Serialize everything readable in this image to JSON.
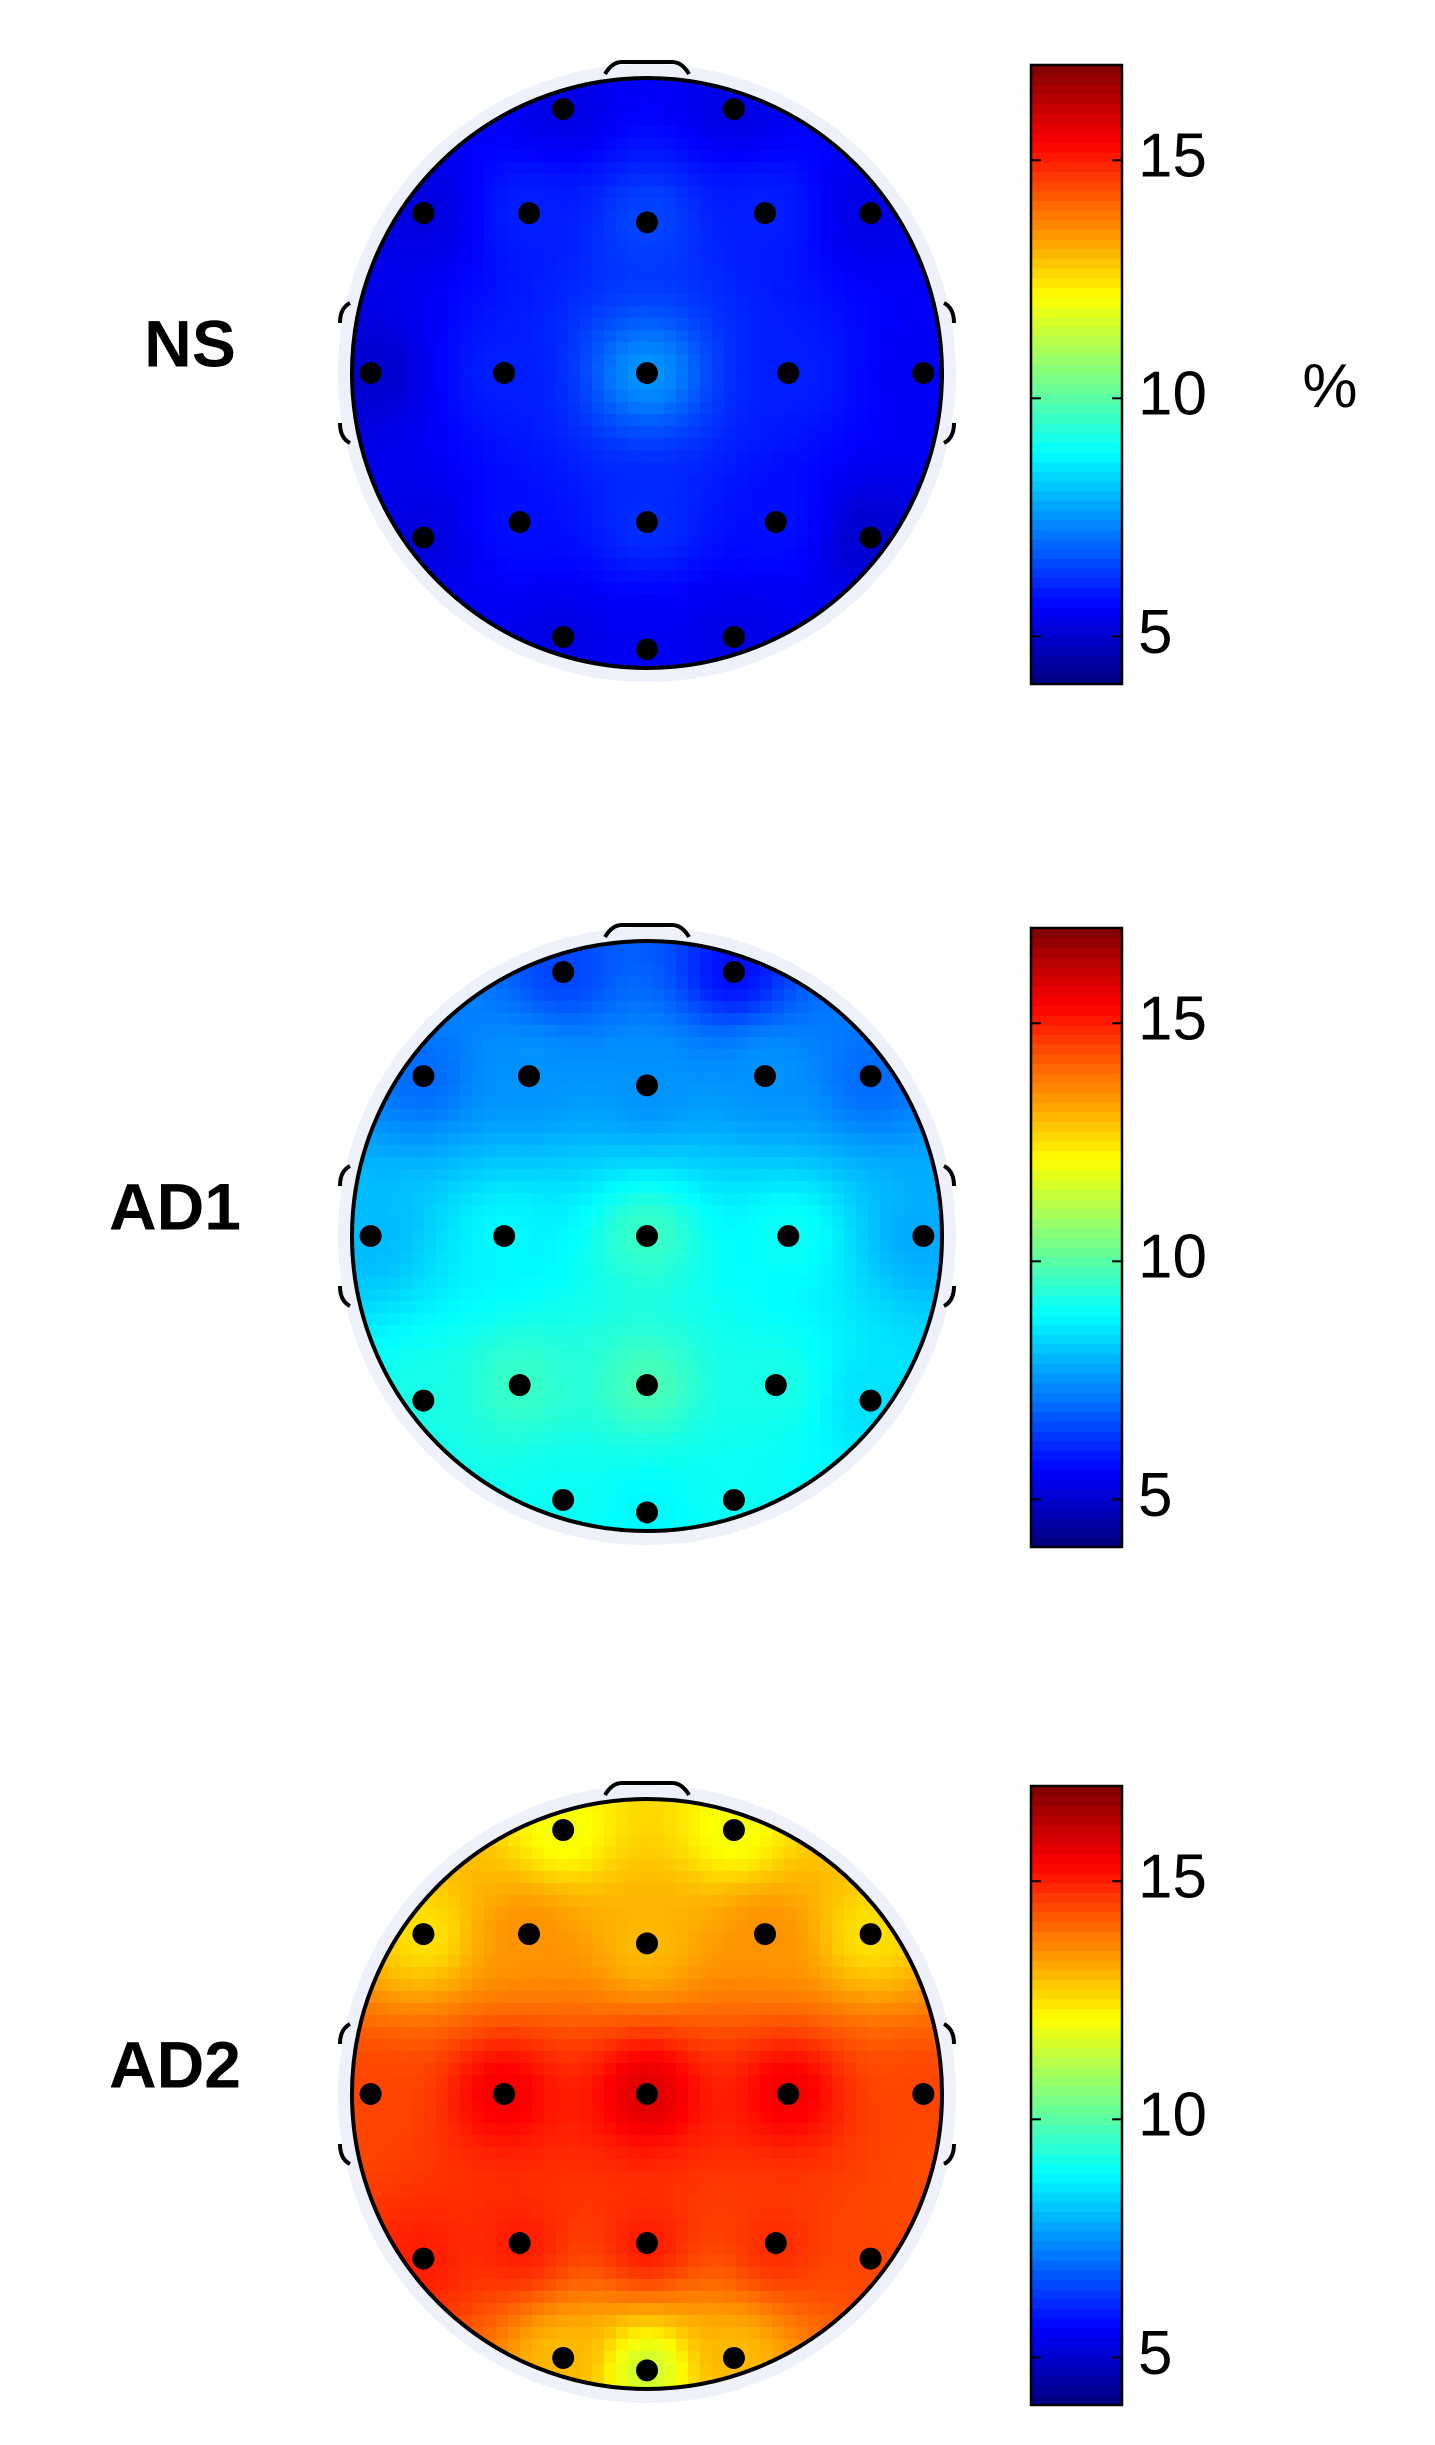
{
  "chart_data": [
    {
      "type": "topomap",
      "title": "NS",
      "colorbar_label": "%",
      "values": [
        5.3,
        5.3,
        5.2,
        6.0,
        6.5,
        6.0,
        5.3,
        5.0,
        6.0,
        7.5,
        6.0,
        5.5,
        5.2,
        5.8,
        6.2,
        5.8,
        5.0,
        5.3,
        5.5,
        5.3
      ],
      "ylim": [
        4,
        17
      ],
      "yticks": [
        5,
        10,
        15
      ]
    },
    {
      "type": "topomap",
      "title": "AD1",
      "values": [
        6.5,
        5.8,
        7.0,
        7.5,
        7.5,
        7.5,
        7.0,
        8.0,
        8.8,
        9.6,
        9.0,
        7.8,
        9.2,
        9.6,
        9.8,
        9.2,
        8.5,
        9.0,
        8.8,
        9.0
      ],
      "ylim": [
        4,
        17
      ],
      "yticks": [
        5,
        10,
        15
      ]
    },
    {
      "type": "topomap",
      "title": "AD2",
      "values": [
        12.0,
        12.0,
        12.5,
        13.5,
        13.0,
        13.5,
        12.5,
        14.5,
        15.5,
        15.8,
        15.5,
        14.5,
        15.0,
        15.0,
        15.0,
        14.8,
        14.5,
        13.0,
        11.5,
        13.0
      ],
      "ylim": [
        4,
        17
      ],
      "yticks": [
        5,
        10,
        15
      ]
    }
  ]
}
